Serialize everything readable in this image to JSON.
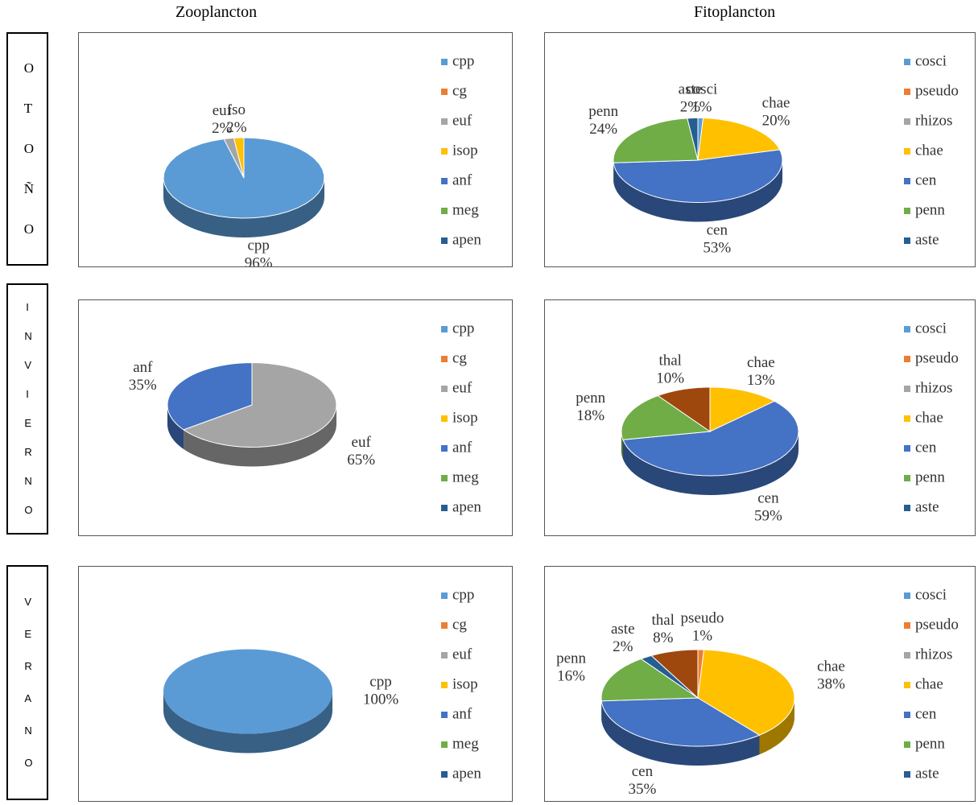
{
  "columns": [
    "Zooplancton",
    "Fitoplancton"
  ],
  "rows": [
    "OTOÑO",
    "INVIERNO",
    "VERANO"
  ],
  "chart_data": [
    {
      "type": "pie",
      "legend": [
        {
          "name": "cpp",
          "color": "#5b9bd5"
        },
        {
          "name": "cg",
          "color": "#ed7d31"
        },
        {
          "name": "euf",
          "color": "#a5a5a5"
        },
        {
          "name": "isop",
          "color": "#ffc000"
        },
        {
          "name": "anf",
          "color": "#4472c4"
        },
        {
          "name": "meg",
          "color": "#70ad47"
        },
        {
          "name": "apen",
          "color": "#255e91"
        }
      ],
      "slices": [
        {
          "name": "cpp",
          "color": "#5b9bd5",
          "value": 96,
          "value_label": "96%"
        },
        {
          "name": "euf",
          "color": "#a5a5a5",
          "value": 2,
          "value_label": "2%"
        },
        {
          "name": "iso",
          "color": "#ffc000",
          "value": 2,
          "value_label": "2%"
        }
      ]
    },
    {
      "type": "pie",
      "legend": [
        {
          "name": "cosci",
          "color": "#5b9bd5"
        },
        {
          "name": "pseudo",
          "color": "#ed7d31"
        },
        {
          "name": "rhizos",
          "color": "#a5a5a5"
        },
        {
          "name": "chae",
          "color": "#ffc000"
        },
        {
          "name": "cen",
          "color": "#4472c4"
        },
        {
          "name": "penn",
          "color": "#70ad47"
        },
        {
          "name": "aste",
          "color": "#255e91"
        }
      ],
      "slices": [
        {
          "name": "cosci",
          "color": "#5b9bd5",
          "value": 1,
          "value_label": "1%"
        },
        {
          "name": "chae",
          "color": "#ffc000",
          "value": 20,
          "value_label": "20%"
        },
        {
          "name": "cen",
          "color": "#4472c4",
          "value": 53,
          "value_label": "53%"
        },
        {
          "name": "penn",
          "color": "#70ad47",
          "value": 24,
          "value_label": "24%"
        },
        {
          "name": "aste",
          "color": "#255e91",
          "value": 2,
          "value_label": "2%"
        }
      ]
    },
    {
      "type": "pie",
      "legend": [
        {
          "name": "cpp",
          "color": "#5b9bd5"
        },
        {
          "name": "cg",
          "color": "#ed7d31"
        },
        {
          "name": "euf",
          "color": "#a5a5a5"
        },
        {
          "name": "isop",
          "color": "#ffc000"
        },
        {
          "name": "anf",
          "color": "#4472c4"
        },
        {
          "name": "meg",
          "color": "#70ad47"
        },
        {
          "name": "apen",
          "color": "#255e91"
        }
      ],
      "slices": [
        {
          "name": "euf",
          "color": "#a5a5a5",
          "value": 65,
          "value_label": "65%"
        },
        {
          "name": "anf",
          "color": "#4472c4",
          "value": 35,
          "value_label": "35%"
        }
      ]
    },
    {
      "type": "pie",
      "legend": [
        {
          "name": "cosci",
          "color": "#5b9bd5"
        },
        {
          "name": "pseudo",
          "color": "#ed7d31"
        },
        {
          "name": "rhizos",
          "color": "#a5a5a5"
        },
        {
          "name": "chae",
          "color": "#ffc000"
        },
        {
          "name": "cen",
          "color": "#4472c4"
        },
        {
          "name": "penn",
          "color": "#70ad47"
        },
        {
          "name": "aste",
          "color": "#255e91"
        }
      ],
      "slices": [
        {
          "name": "chae",
          "color": "#ffc000",
          "value": 13,
          "value_label": "13%"
        },
        {
          "name": "cen",
          "color": "#4472c4",
          "value": 59,
          "value_label": "59%"
        },
        {
          "name": "penn",
          "color": "#70ad47",
          "value": 18,
          "value_label": "18%"
        },
        {
          "name": "thal",
          "color": "#9e480e",
          "value": 10,
          "value_label": "10%"
        }
      ]
    },
    {
      "type": "pie",
      "legend": [
        {
          "name": "cpp",
          "color": "#5b9bd5"
        },
        {
          "name": "cg",
          "color": "#ed7d31"
        },
        {
          "name": "euf",
          "color": "#a5a5a5"
        },
        {
          "name": "isop",
          "color": "#ffc000"
        },
        {
          "name": "anf",
          "color": "#4472c4"
        },
        {
          "name": "meg",
          "color": "#70ad47"
        },
        {
          "name": "apen",
          "color": "#255e91"
        }
      ],
      "slices": [
        {
          "name": "cpp",
          "color": "#5b9bd5",
          "value": 100,
          "value_label": "100%"
        }
      ]
    },
    {
      "type": "pie",
      "legend": [
        {
          "name": "cosci",
          "color": "#5b9bd5"
        },
        {
          "name": "pseudo",
          "color": "#ed7d31"
        },
        {
          "name": "rhizos",
          "color": "#a5a5a5"
        },
        {
          "name": "chae",
          "color": "#ffc000"
        },
        {
          "name": "cen",
          "color": "#4472c4"
        },
        {
          "name": "penn",
          "color": "#70ad47"
        },
        {
          "name": "aste",
          "color": "#255e91"
        }
      ],
      "slices": [
        {
          "name": "pseudo",
          "color": "#ed7d31",
          "value": 1,
          "value_label": "1%"
        },
        {
          "name": "chae",
          "color": "#ffc000",
          "value": 38,
          "value_label": "38%"
        },
        {
          "name": "cen",
          "color": "#4472c4",
          "value": 35,
          "value_label": "35%"
        },
        {
          "name": "penn",
          "color": "#70ad47",
          "value": 16,
          "value_label": "16%"
        },
        {
          "name": "aste",
          "color": "#255e91",
          "value": 2,
          "value_label": "2%"
        },
        {
          "name": "thal",
          "color": "#9e480e",
          "value": 8,
          "value_label": "8%"
        }
      ]
    }
  ]
}
